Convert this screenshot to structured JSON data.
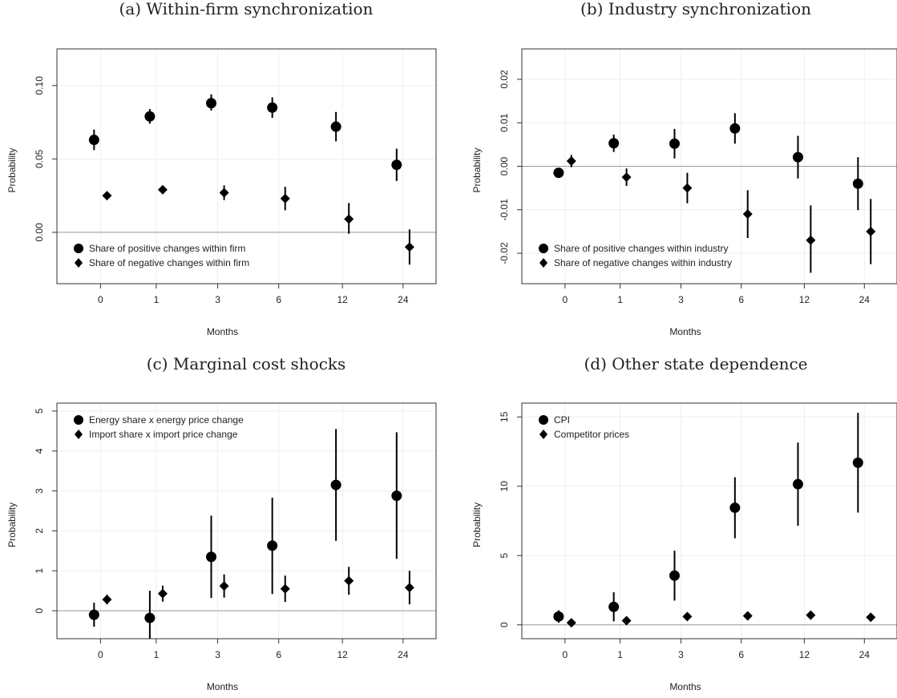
{
  "chart_data": [
    {
      "panel": "a",
      "type": "scatter",
      "title": "(a) Within-firm synchronization",
      "xlabel": "Months",
      "ylabel": "Probability",
      "categories": [
        "0",
        "1",
        "3",
        "6",
        "12",
        "24"
      ],
      "ylim": [
        -0.035,
        0.125
      ],
      "yticks": [
        0,
        0.05,
        0.1
      ],
      "ytick_labels": [
        "0.00",
        "0.05",
        "0.10"
      ],
      "reference_line": 0,
      "grid": true,
      "legend_position": "bottom-left",
      "series": [
        {
          "name": "Share of positive changes within firm",
          "marker": "circle",
          "values": [
            0.063,
            0.079,
            0.088,
            0.085,
            0.072,
            0.046
          ],
          "lower": [
            0.056,
            0.074,
            0.083,
            0.078,
            0.062,
            0.035
          ],
          "upper": [
            0.07,
            0.084,
            0.094,
            0.092,
            0.082,
            0.057
          ]
        },
        {
          "name": "Share of negative changes within firm",
          "marker": "diamond",
          "values": [
            0.025,
            0.029,
            0.027,
            0.023,
            0.009,
            -0.01
          ],
          "lower": [
            0.023,
            0.027,
            0.022,
            0.015,
            -0.001,
            -0.022
          ],
          "upper": [
            0.027,
            0.031,
            0.032,
            0.031,
            0.02,
            0.002
          ]
        }
      ]
    },
    {
      "panel": "b",
      "type": "scatter",
      "title": "(b) Industry synchronization",
      "xlabel": "Months",
      "ylabel": "Probability",
      "categories": [
        "0",
        "1",
        "3",
        "6",
        "12",
        "24"
      ],
      "ylim": [
        -0.027,
        0.027
      ],
      "yticks": [
        -0.02,
        -0.01,
        0,
        0.01,
        0.02
      ],
      "ytick_labels": [
        "-0.02",
        "-0.01",
        "0.00",
        "0.01",
        "0.02"
      ],
      "reference_line": 0,
      "grid": true,
      "legend_position": "bottom-left",
      "series": [
        {
          "name": "Share of positive changes within industry",
          "marker": "circle",
          "values": [
            -0.0015,
            0.0053,
            0.0052,
            0.0087,
            0.0021,
            -0.004
          ],
          "lower": [
            -0.002,
            0.0033,
            0.0018,
            0.0052,
            -0.0028,
            -0.0101
          ],
          "upper": [
            -0.001,
            0.0073,
            0.0086,
            0.0122,
            0.007,
            0.0021
          ]
        },
        {
          "name": "Share of negative changes within industry",
          "marker": "diamond",
          "values": [
            0.0012,
            -0.0025,
            -0.005,
            -0.011,
            -0.017,
            -0.015
          ],
          "lower": [
            -0.0002,
            -0.0045,
            -0.0085,
            -0.0165,
            -0.0245,
            -0.0225
          ],
          "upper": [
            0.0026,
            -0.0005,
            -0.0015,
            -0.0055,
            -0.009,
            -0.0075
          ]
        }
      ]
    },
    {
      "panel": "c",
      "type": "scatter",
      "title": "(c) Marginal cost shocks",
      "xlabel": "Months",
      "ylabel": "Probability",
      "categories": [
        "0",
        "1",
        "3",
        "6",
        "12",
        "24"
      ],
      "ylim": [
        -0.7,
        5.2
      ],
      "yticks": [
        0,
        1,
        2,
        3,
        4,
        5
      ],
      "ytick_labels": [
        "0",
        "1",
        "2",
        "3",
        "4",
        "5"
      ],
      "reference_line": 0,
      "grid": true,
      "legend_position": "top-left",
      "series": [
        {
          "name": "Energy share x energy price change",
          "marker": "circle",
          "values": [
            -0.1,
            -0.18,
            1.35,
            1.63,
            3.15,
            2.88
          ],
          "lower": [
            -0.4,
            -0.9,
            0.32,
            0.42,
            1.75,
            1.3
          ],
          "upper": [
            0.2,
            0.5,
            2.38,
            2.83,
            4.55,
            4.47
          ]
        },
        {
          "name": "Import share x import price change",
          "marker": "diamond",
          "values": [
            0.28,
            0.43,
            0.62,
            0.55,
            0.75,
            0.58
          ],
          "lower": [
            0.16,
            0.23,
            0.33,
            0.22,
            0.4,
            0.16
          ],
          "upper": [
            0.4,
            0.63,
            0.91,
            0.88,
            1.1,
            1.0
          ]
        }
      ]
    },
    {
      "panel": "d",
      "type": "scatter",
      "title": "(d) Other state dependence",
      "xlabel": "Months",
      "ylabel": "Probability",
      "categories": [
        "0",
        "1",
        "3",
        "6",
        "12",
        "24"
      ],
      "ylim": [
        -1.0,
        16.0
      ],
      "yticks": [
        0,
        5,
        10,
        15
      ],
      "ytick_labels": [
        "0",
        "5",
        "10",
        "15"
      ],
      "reference_line": 0,
      "grid": true,
      "legend_position": "top-left",
      "series": [
        {
          "name": "CPI",
          "marker": "circle",
          "values": [
            0.6,
            1.3,
            3.55,
            8.45,
            10.15,
            11.7
          ],
          "lower": [
            0.15,
            0.25,
            1.75,
            6.25,
            7.15,
            8.1
          ],
          "upper": [
            1.05,
            2.35,
            5.35,
            10.65,
            13.15,
            15.3
          ]
        },
        {
          "name": "Competitor prices",
          "marker": "diamond",
          "values": [
            0.15,
            0.3,
            0.6,
            0.65,
            0.7,
            0.55
          ],
          "lower": [
            0.0,
            0.2,
            0.48,
            0.55,
            0.6,
            0.45
          ],
          "upper": [
            0.3,
            0.4,
            0.72,
            0.75,
            0.8,
            0.65
          ]
        }
      ]
    }
  ]
}
